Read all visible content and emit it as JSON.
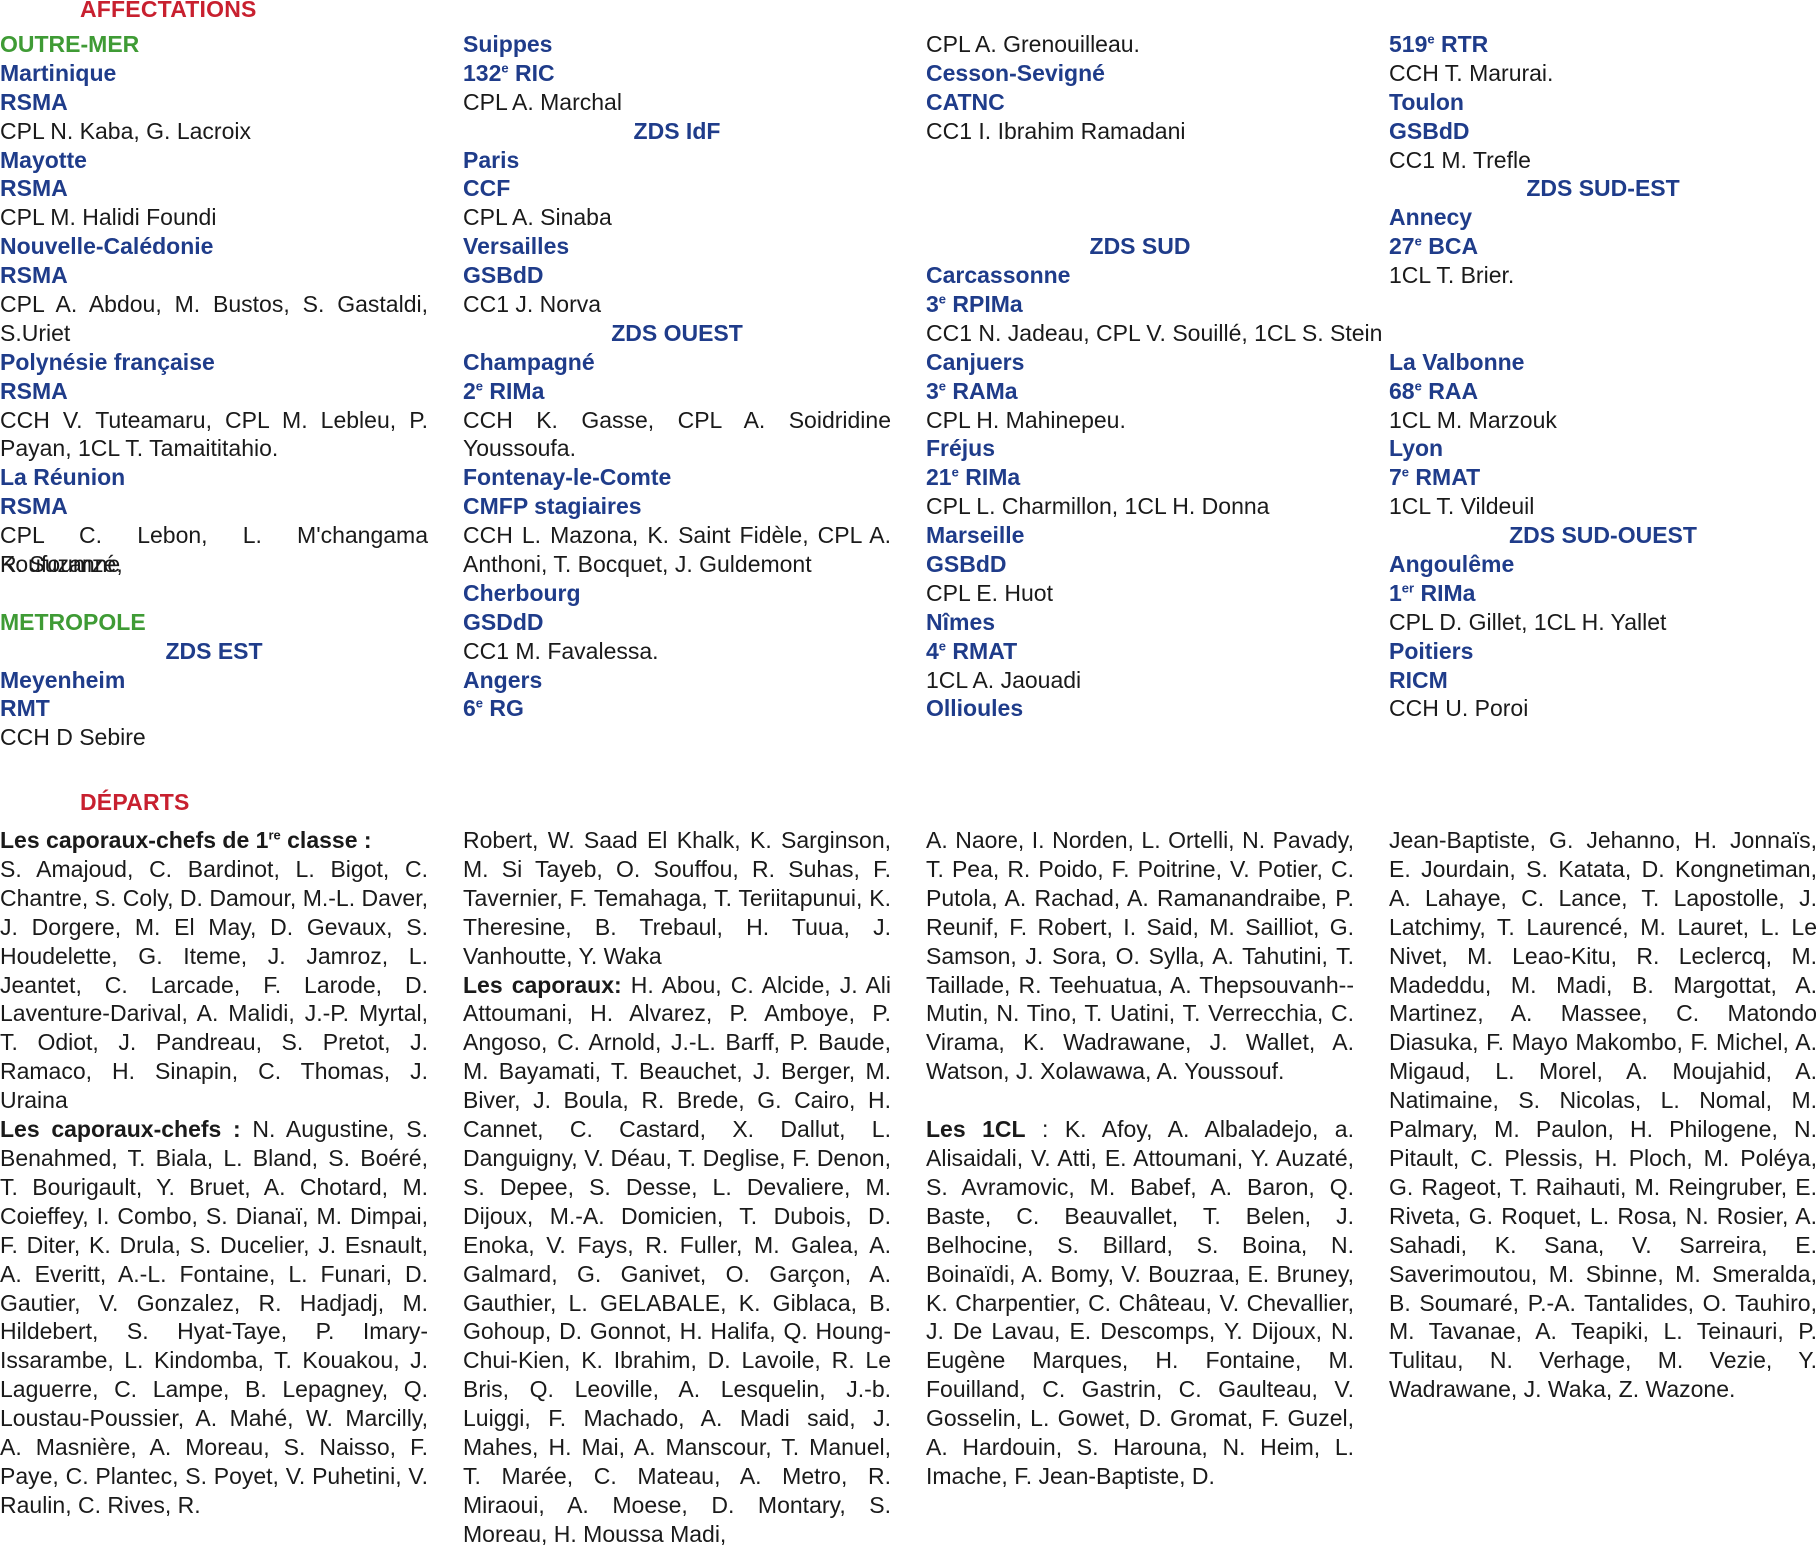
{
  "affectations": {
    "title": "AFFECTATIONS",
    "columns": [
      [
        {
          "t": "g",
          "v": "OUTRE-MER"
        },
        {
          "t": "l",
          "v": "Martinique"
        },
        {
          "t": "l",
          "v": "RSMA"
        },
        {
          "t": "p",
          "v": "CPL N. Kaba, G. Lacroix"
        },
        {
          "t": "l",
          "v": "Mayotte"
        },
        {
          "t": "l",
          "v": "RSMA"
        },
        {
          "t": "p",
          "v": "CPL M. Halidi Foundi"
        },
        {
          "t": "l",
          "v": "Nouvelle-Calédonie"
        },
        {
          "t": "l",
          "v": "RSMA"
        },
        {
          "t": "j",
          "v": "CPL A. Abdou, M. Bustos, S. Gastaldi,"
        },
        {
          "t": "p",
          "v": "S.Uriet"
        },
        {
          "t": "l",
          "v": "Polynésie française"
        },
        {
          "t": "l",
          "v": "RSMA"
        },
        {
          "t": "j",
          "v": "CCH V. Tuteamaru, CPL M. Lebleu, P."
        },
        {
          "t": "p",
          "v": "Payan, 1CL T. Tamaititahio."
        },
        {
          "t": "l",
          "v": "La Réunion"
        },
        {
          "t": "l",
          "v": "RSMA"
        },
        {
          "t": "j",
          "v": "CPL C. Lebon, L. M'changama Koufoumzé,"
        },
        {
          "t": "p",
          "v": "R. Suzanne"
        },
        {
          "t": "s",
          "v": ""
        },
        {
          "t": "g",
          "v": "METROPOLE"
        },
        {
          "t": "z",
          "v": "ZDS EST"
        },
        {
          "t": "l",
          "v": "Meyenheim"
        },
        {
          "t": "l",
          "v": "RMT"
        },
        {
          "t": "p",
          "v": "CCH D Sebire"
        }
      ],
      [
        {
          "t": "l",
          "v": "Suippes"
        },
        {
          "t": "l",
          "v": "132",
          "sup": "e",
          "after": " RIC"
        },
        {
          "t": "p",
          "v": "CPL A. Marchal"
        },
        {
          "t": "z",
          "v": "ZDS IdF"
        },
        {
          "t": "l",
          "v": "Paris"
        },
        {
          "t": "l",
          "v": "CCF"
        },
        {
          "t": "p",
          "v": "CPL A. Sinaba"
        },
        {
          "t": "l",
          "v": "Versailles"
        },
        {
          "t": "l",
          "v": "GSBdD"
        },
        {
          "t": "p",
          "v": "CC1 J. Norva"
        },
        {
          "t": "z",
          "v": "ZDS OUEST"
        },
        {
          "t": "l",
          "v": "Champagné"
        },
        {
          "t": "l",
          "v": "2",
          "sup": "e",
          "after": " RIMa"
        },
        {
          "t": "j",
          "v": "CCH K. Gasse, CPL A. Soidridine"
        },
        {
          "t": "p",
          "v": "Youssoufa."
        },
        {
          "t": "l",
          "v": "Fontenay-le-Comte"
        },
        {
          "t": "l",
          "v": "CMFP stagiaires"
        },
        {
          "t": "j",
          "v": "CCH L. Mazona, K. Saint Fidèle, CPL A."
        },
        {
          "t": "p",
          "v": "Anthoni, T. Bocquet, J. Guldemont"
        },
        {
          "t": "l",
          "v": "Cherbourg"
        },
        {
          "t": "l",
          "v": "GSDdD"
        },
        {
          "t": "p",
          "v": "CC1 M. Favalessa."
        },
        {
          "t": "l",
          "v": "Angers"
        },
        {
          "t": "l",
          "v": "6",
          "sup": "e",
          "after": " RG"
        }
      ],
      [
        {
          "t": "p",
          "v": "CPL A. Grenouilleau."
        },
        {
          "t": "l",
          "v": "Cesson-Sevigné"
        },
        {
          "t": "l",
          "v": "CATNC"
        },
        {
          "t": "p",
          "v": "CC1 I. Ibrahim Ramadani"
        },
        {
          "t": "s",
          "v": ""
        },
        {
          "t": "s",
          "v": ""
        },
        {
          "t": "s",
          "v": ""
        },
        {
          "t": "z",
          "v": "ZDS SUD"
        },
        {
          "t": "l",
          "v": "Carcassonne"
        },
        {
          "t": "l",
          "v": "3",
          "sup": "e",
          "after": " RPIMa"
        },
        {
          "t": "p",
          "v": "CC1 N. Jadeau, CPL V. Souillé, 1CL S. Stein"
        },
        {
          "t": "l",
          "v": "Canjuers"
        },
        {
          "t": "l",
          "v": "3",
          "sup": "e",
          "after": " RAMa"
        },
        {
          "t": "p",
          "v": "CPL H. Mahinepeu."
        },
        {
          "t": "l",
          "v": "Fréjus"
        },
        {
          "t": "l",
          "v": "21",
          "sup": "e",
          "after": " RIMa"
        },
        {
          "t": "p",
          "v": "CPL L. Charmillon, 1CL H. Donna"
        },
        {
          "t": "l",
          "v": "Marseille"
        },
        {
          "t": "l",
          "v": "GSBdD"
        },
        {
          "t": "p",
          "v": "CPL E. Huot"
        },
        {
          "t": "l",
          "v": "Nîmes"
        },
        {
          "t": "l",
          "v": "4",
          "sup": "e",
          "after": " RMAT"
        },
        {
          "t": "p",
          "v": "1CL A. Jaouadi"
        },
        {
          "t": "l",
          "v": "Ollioules"
        }
      ],
      [
        {
          "t": "l",
          "v": "519",
          "sup": "e",
          "after": " RTR"
        },
        {
          "t": "p",
          "v": "CCH T. Marurai."
        },
        {
          "t": "l",
          "v": "Toulon"
        },
        {
          "t": "l",
          "v": "GSBdD"
        },
        {
          "t": "p",
          "v": "CC1 M. Trefle"
        },
        {
          "t": "z",
          "v": "ZDS SUD-EST"
        },
        {
          "t": "l",
          "v": "Annecy"
        },
        {
          "t": "l",
          "v": "27",
          "sup": "e",
          "after": " BCA"
        },
        {
          "t": "p",
          "v": "1CL T. Brier."
        },
        {
          "t": "s",
          "v": ""
        },
        {
          "t": "s",
          "v": ""
        },
        {
          "t": "l",
          "v": "La Valbonne"
        },
        {
          "t": "l",
          "v": "68",
          "sup": "e",
          "after": " RAA"
        },
        {
          "t": "p",
          "v": "1CL M. Marzouk"
        },
        {
          "t": "l",
          "v": "Lyon"
        },
        {
          "t": "l",
          "v": "7",
          "sup": "e",
          "after": " RMAT"
        },
        {
          "t": "p",
          "v": "1CL T. Vildeuil"
        },
        {
          "t": "z",
          "v": "ZDS SUD-OUEST"
        },
        {
          "t": "l",
          "v": "Angoulême"
        },
        {
          "t": "l",
          "v": "1",
          "sup": "er",
          "after": " RIMa"
        },
        {
          "t": "p",
          "v": "CPL D. Gillet, 1CL H. Yallet"
        },
        {
          "t": "l",
          "v": "Poitiers"
        },
        {
          "t": "l",
          "v": "RICM"
        },
        {
          "t": "p",
          "v": "CCH U. Poroi"
        }
      ]
    ]
  },
  "departs": {
    "title": "DÉPARTS",
    "col1": {
      "h1_pre": "Les caporaux-chefs de 1",
      "h1_sup": "re",
      "h1_post": " classe :",
      "p1": "S. Amajoud, C. Bardinot, L. Bigot, C. Chantre, S. Coly, D. Damour, M.-L. Daver, J. Dorgere, M. El May, D. Gevaux, S. Houdelette, G. Iteme, J. Jamroz, L. Jeantet, C. Larcade, F. Larode, D. Laventure-Darival, A. Malidi, J.-P. Myrtal, T. Odiot, J. Pandreau, S. Pretot, J. Ramaco, H. Sinapin, C. Thomas, J. Uraina",
      "h2": "Les caporaux-chefs :",
      "p2": " N. Augustine, S. Benahmed, T. Biala, L. Bland, S. Boéré, T. Bourigault, Y. Bruet, A. Chotard, M. Coieffey, I. Combo, S. Dianaï, M. Dimpai, F. Diter, K. Drula, S. Ducelier, J. Esnault, A. Everitt, A.-L. Fontaine, L. Funari, D. Gautier, V. Gonzalez, R. Hadjadj, M. Hildebert, S. Hyat-Taye, P. Imary-Issarambe, L. Kindomba, T. Kouakou, J. Laguerre, C. Lampe, B. Lepagney, Q. Loustau-Poussier, A. Mahé, W. Marcilly, A. Masnière, A. Moreau, S. Naisso, F. Paye, C. Plantec, S. Poyet, V. Puhetini, V. Raulin, C. Rives, R."
    },
    "col2": {
      "p1": "Robert, W. Saad El Khalk, K. Sarginson, M. Si Tayeb, O. Souffou, R. Suhas, F. Tavernier, F. Temahaga, T. Teriitapunui, K. Theresine, B. Trebaul, H. Tuua, J. Vanhoutte, Y. Waka",
      "h2": "Les caporaux:",
      "p2": " H. Abou, C. Alcide, J. Ali Attoumani, H. Alvarez, P. Amboye, P. Angoso, C. Arnold, J.-L. Barff, P. Baude, M. Bayamati, T. Beauchet, J. Berger, M. Biver, J. Boula, R. Brede, G. Cairo, H. Cannet, C. Castard, X. Dallut, L. Danguigny, V. Déau, T. Deglise, F. Denon, S. Depee, S. Desse, L. Devaliere, M. Dijoux, M.-A. Domicien, T. Dubois, D. Enoka, V. Fays, R. Fuller, M. Galea, A. Galmard, G. Ganivet, O. Garçon, A. Gauthier, L. GELABALE, K. Giblaca, B. Gohoup, D. Gonnot, H. Halifa, Q. Houng-Chui-Kien, K. Ibrahim, D. Lavoile, R. Le Bris, Q. Leoville, A. Lesquelin, J.-b. Luiggi, F. Machado, A. Madi said, J. Mahes, H. Mai, A. Manscour, T. Manuel, T. Marée, C. Mateau, A. Metro, R. Miraoui, A. Moese, D. Montary, S. Moreau, H. Moussa Madi,"
    },
    "col3": {
      "p1": "A. Naore, I. Norden, L. Ortelli, N. Pavady, T. Pea, R. Poido, F. Poitrine, V. Potier, C. Putola, A. Rachad, A. Ramanandraibe, P. Reunif, F. Robert, I. Said, M. Sailliot, G. Samson, J. Sora, O. Sylla, A. Tahutini, T. Taillade, R. Teehuatua, A. Thepsouvanh--Mutin, N. Tino, T. Uatini, T. Verrecchia, C. Virama, K. Wadrawane, J. Wallet, A. Watson, J. Xolawawa, A. Youssouf.",
      "h2": "Les 1CL",
      "p2": " : K. Afoy, A. Albaladejo, a. Alisaidali, V. Atti, E. Attoumani, Y. Auzaté, S. Avramovic, M. Babef, A. Baron, Q. Baste, C. Beauvallet, T. Belen, J. Belhocine, S. Billard, S. Boina, N. Boinaïdi, A. Bomy, V. Bouzraa, E. Bruney, K. Charpentier, C. Château, V. Chevallier, J. De Lavau, E. Descomps, Y. Dijoux, N. Eugène Marques, H. Fontaine, M. Fouilland, C. Gastrin, C. Gaulteau, V. Gosselin, L. Gowet, D. Gromat, F. Guzel, A. Hardouin, S. Harouna, N. Heim, L. Imache, F. Jean-Baptiste, D."
    },
    "col4": {
      "p1": "Jean-Baptiste, G. Jehanno, H. Jonnaïs, E. Jourdain, S. Katata, D. Kongnetiman, A. Lahaye, C. Lance, T. Lapostolle, J. Latchimy, T. Laurencé, M. Lauret, L. Le Nivet, M. Leao-Kitu, R. Leclercq, M. Madeddu, M. Madi, B. Margottat, A. Martinez, A. Massee, C. Matondo Diasuka, F. Mayo Makombo, F. Michel, A. Migaud, L. Morel, A. Moujahid, A. Natimaine, S. Nicolas, L. Nomal, M. Palmary, M. Paulon, H. Philogene, N. Pitault, C. Plessis, H. Ploch, M. Poléya, G. Rageot, T. Raihauti, M. Reingruber, E. Riveta, G. Roquet, L. Rosa, N. Rosier, A. Sahadi, K. Sana, V. Sarreira, E. Saverimoutou, M. Sbinne, M. Smeralda, B. Soumaré, P.-A. Tantalides, O. Tauhiro, M. Tavanae, A. Teapiki, L. Teinauri, P. Tulitau, N. Verhage, M. Vezie, Y. Wadrawane, J. Waka, Z. Wazone."
    }
  },
  "colors": {
    "title_red": "#c8202f",
    "heading_green": "#3f9b35",
    "location_blue": "#1f3c8a",
    "text": "#1a1a1a"
  }
}
